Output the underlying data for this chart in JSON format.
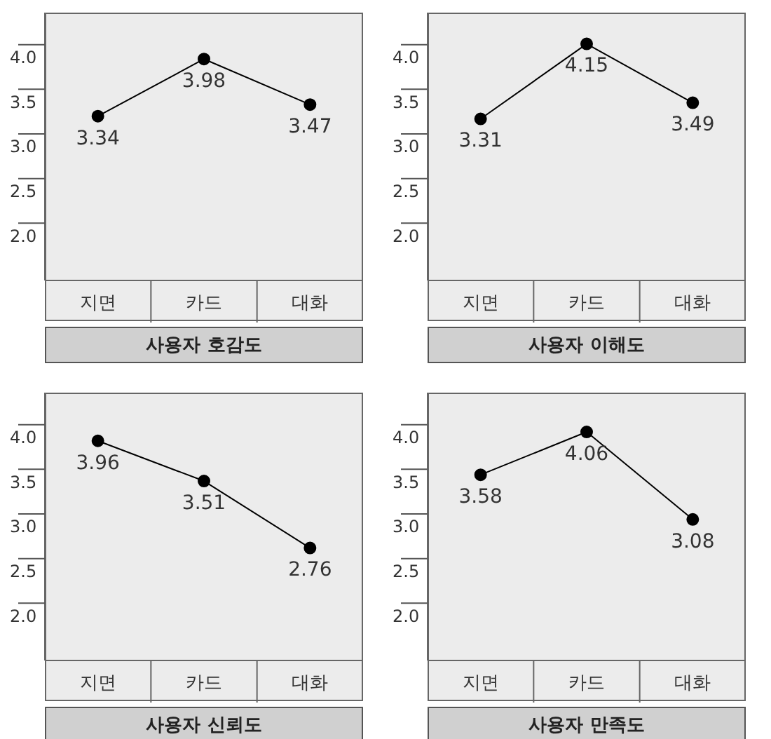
{
  "chart_data": [
    {
      "type": "line",
      "title": "사용자 호감도",
      "categories": [
        "지면",
        "카드",
        "대화"
      ],
      "values": [
        3.34,
        3.98,
        3.47
      ],
      "color": "#000000",
      "marker": "circle",
      "data_labels": true,
      "ylim": [
        1.5,
        4.5
      ],
      "yticks": [
        {
          "value": 2,
          "label": "2.0"
        },
        {
          "value": 2.5,
          "label": "2.5"
        },
        {
          "value": 3,
          "label": "3.0"
        },
        {
          "value": 3.5,
          "label": "3.5"
        },
        {
          "value": 4,
          "label": "4.0"
        }
      ]
    },
    {
      "type": "line",
      "title": "사용자 이해도",
      "categories": [
        "지면",
        "카드",
        "대화"
      ],
      "values": [
        3.31,
        4.15,
        3.49
      ],
      "color": "#000000",
      "marker": "circle",
      "data_labels": true,
      "ylim": [
        1.5,
        4.5
      ],
      "yticks": [
        {
          "value": 2,
          "label": "2.0"
        },
        {
          "value": 2.5,
          "label": "2.5"
        },
        {
          "value": 3,
          "label": "3.0"
        },
        {
          "value": 3.5,
          "label": "3.5"
        },
        {
          "value": 4,
          "label": "4.0"
        }
      ]
    },
    {
      "type": "line",
      "title": "사용자 신뢰도",
      "categories": [
        "지면",
        "카드",
        "대화"
      ],
      "values": [
        3.96,
        3.51,
        2.76
      ],
      "color": "#000000",
      "marker": "circle",
      "data_labels": true,
      "ylim": [
        1.5,
        4.5
      ],
      "yticks": [
        {
          "value": 2,
          "label": "2.0"
        },
        {
          "value": 2.5,
          "label": "2.5"
        },
        {
          "value": 3,
          "label": "3.0"
        },
        {
          "value": 3.5,
          "label": "3.5"
        },
        {
          "value": 4,
          "label": "4.0"
        }
      ]
    },
    {
      "type": "line",
      "title": "사용자 만족도",
      "categories": [
        "지면",
        "카드",
        "대화"
      ],
      "values": [
        3.58,
        4.06,
        3.08
      ],
      "color": "#000000",
      "marker": "circle",
      "data_labels": true,
      "ylim": [
        1.5,
        4.5
      ],
      "yticks": [
        {
          "value": 2,
          "label": "2.0"
        },
        {
          "value": 2.5,
          "label": "2.5"
        },
        {
          "value": 3,
          "label": "3.0"
        },
        {
          "value": 3.5,
          "label": "3.5"
        },
        {
          "value": 4,
          "label": "4.0"
        }
      ]
    }
  ]
}
